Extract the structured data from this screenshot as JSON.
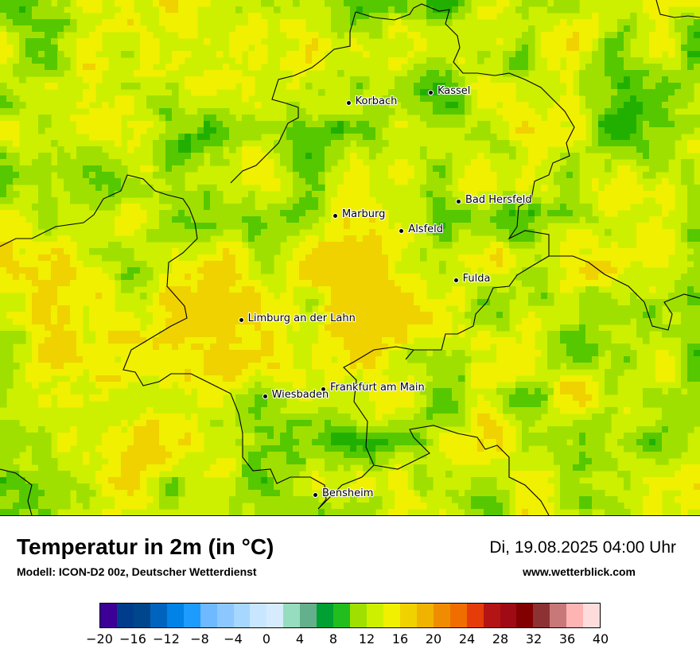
{
  "map": {
    "cities": [
      {
        "name": "Kassel",
        "lon": 9.49,
        "lat": 51.31
      },
      {
        "name": "Korbach",
        "lon": 8.87,
        "lat": 51.27
      },
      {
        "name": "Bad Hersfeld",
        "lon": 9.7,
        "lat": 50.87
      },
      {
        "name": "Marburg",
        "lon": 8.77,
        "lat": 50.81
      },
      {
        "name": "Alsfeld",
        "lon": 9.27,
        "lat": 50.75
      },
      {
        "name": "Fulda",
        "lon": 9.68,
        "lat": 50.55
      },
      {
        "name": "Limburg an der Lahn",
        "lon": 8.06,
        "lat": 50.39
      },
      {
        "name": "Frankfurt am Main",
        "lon": 8.68,
        "lat": 50.11
      },
      {
        "name": "Wiesbaden",
        "lon": 8.24,
        "lat": 50.08
      },
      {
        "name": "Bensheim",
        "lon": 8.62,
        "lat": 49.68
      }
    ],
    "colors": {
      "dominant": "#cdf000",
      "warm": "#f0f000",
      "warmer": "#f0d200",
      "cool": "#a0e000",
      "cooler": "#55c800",
      "coolest": "#22b000",
      "border": "#000000"
    }
  },
  "header": {
    "title": "Temperatur in 2m (in °C)",
    "subtitle": "Modell: ICON-D2 00z, Deutscher Wetterdienst",
    "datetime": "Di, 19.08.2025 04:00 Uhr",
    "website": "www.wetterblick.com"
  },
  "legend": {
    "colors": [
      "#3c0096",
      "#003c8c",
      "#00468c",
      "#0064be",
      "#0082e6",
      "#1e9bff",
      "#6eb9ff",
      "#8cc8ff",
      "#a5d7ff",
      "#c8e6ff",
      "#d7ebff",
      "#96dcbe",
      "#64af8c",
      "#00a032",
      "#22be1e",
      "#a0e000",
      "#cdf000",
      "#f0f000",
      "#f0d200",
      "#f0b400",
      "#f08c00",
      "#f06e00",
      "#e63c0a",
      "#b41414",
      "#a00a14",
      "#820000",
      "#8c3232",
      "#c87878",
      "#ffb4b4",
      "#ffdcdc"
    ],
    "ticks": [
      "−20",
      "−16",
      "−12",
      "−8",
      "−4",
      "0",
      "4",
      "8",
      "12",
      "16",
      "20",
      "24",
      "28",
      "32",
      "36",
      "40"
    ],
    "min": -20,
    "max": 40
  }
}
